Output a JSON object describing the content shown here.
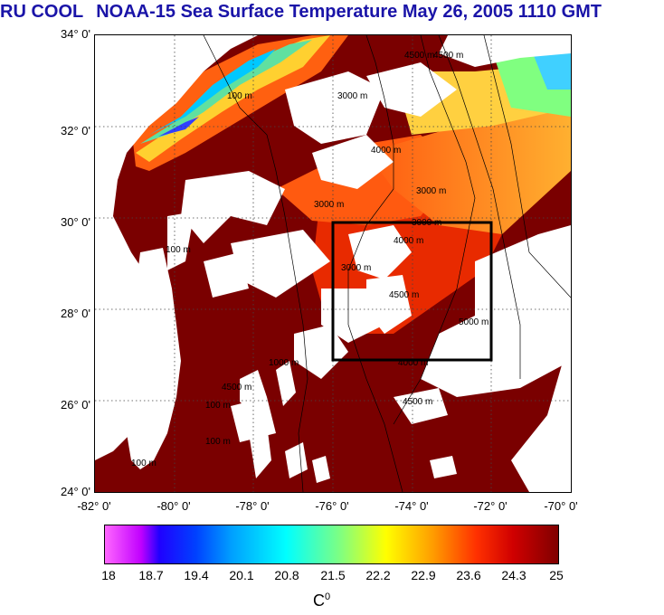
{
  "title": {
    "source": "RU COOL",
    "text": "NOAA-15 Sea Surface Temperature May 26, 2005 1110 GMT"
  },
  "map": {
    "lat_labels": [
      "34° 0'",
      "32° 0'",
      "30° 0'",
      "28° 0'",
      "26° 0'",
      "24° 0'"
    ],
    "lon_labels": [
      "-82° 0'",
      "-80° 0'",
      "-78° 0'",
      "-76° 0'",
      "-74° 0'",
      "-72° 0'",
      "-70° 0'"
    ],
    "lat_range": [
      24,
      34
    ],
    "lon_range": [
      -82,
      -70
    ],
    "study_box": {
      "lon": [
        -76,
        -72
      ],
      "lat": [
        27,
        30
      ]
    },
    "isobath_labels": [
      "100 m",
      "3000 m",
      "4000 m",
      "3000 m",
      "4500 m",
      "3000 m",
      "4000 m",
      "4500 m",
      "3000 m",
      "3000 m",
      "4500 m",
      "4000 m",
      "5000 m",
      "4500 m",
      "100 m",
      "4500 m",
      "1000 m",
      "100 m",
      "100 m",
      "100 m"
    ],
    "colors": {
      "warm": "#7a0000",
      "cloud": "#ffffff",
      "land": "#ffffff"
    }
  },
  "colorbar": {
    "ticks": [
      "18",
      "18.7",
      "19.4",
      "20.1",
      "20.8",
      "21.5",
      "22.2",
      "22.9",
      "23.6",
      "24.3",
      "25"
    ],
    "unit": "C",
    "unit_sup": "0",
    "range": [
      18,
      25
    ]
  }
}
